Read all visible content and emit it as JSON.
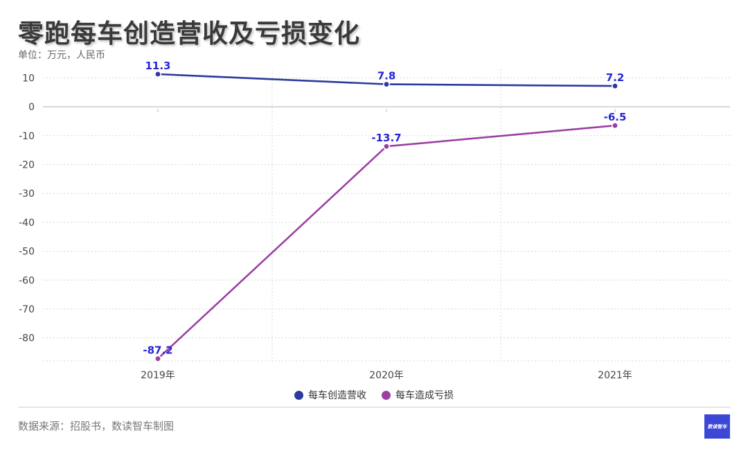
{
  "header": {
    "title": "零跑每车创造营收及亏损变化",
    "subtitle": "单位：万元，人民币"
  },
  "footer": {
    "source": "数据来源：招股书，数读智车制图",
    "logo_text": "数读智车"
  },
  "colors": {
    "revenue": "#2b3a9e",
    "loss": "#9b3fa3",
    "label": "#2424d6",
    "grid": "#d6d6d6",
    "axis": "#bfbfbf"
  },
  "chart_data": {
    "type": "line",
    "categories": [
      "2019年",
      "2020年",
      "2021年"
    ],
    "series": [
      {
        "name": "每车创造营收",
        "values": [
          11.3,
          7.8,
          7.2
        ],
        "labels": [
          "11.3",
          "7.8",
          "7.2"
        ]
      },
      {
        "name": "每车造成亏损",
        "values": [
          -87.2,
          -13.7,
          -6.5
        ],
        "labels": [
          "-87.2",
          "-13.7",
          "-6.5"
        ]
      }
    ],
    "yticks": [
      "10",
      "0",
      "-10",
      "-20",
      "-30",
      "-40",
      "-50",
      "-60",
      "-70",
      "-80"
    ],
    "ylim": [
      -88,
      11.3
    ],
    "grid": true,
    "legend_position": "bottom-center"
  }
}
